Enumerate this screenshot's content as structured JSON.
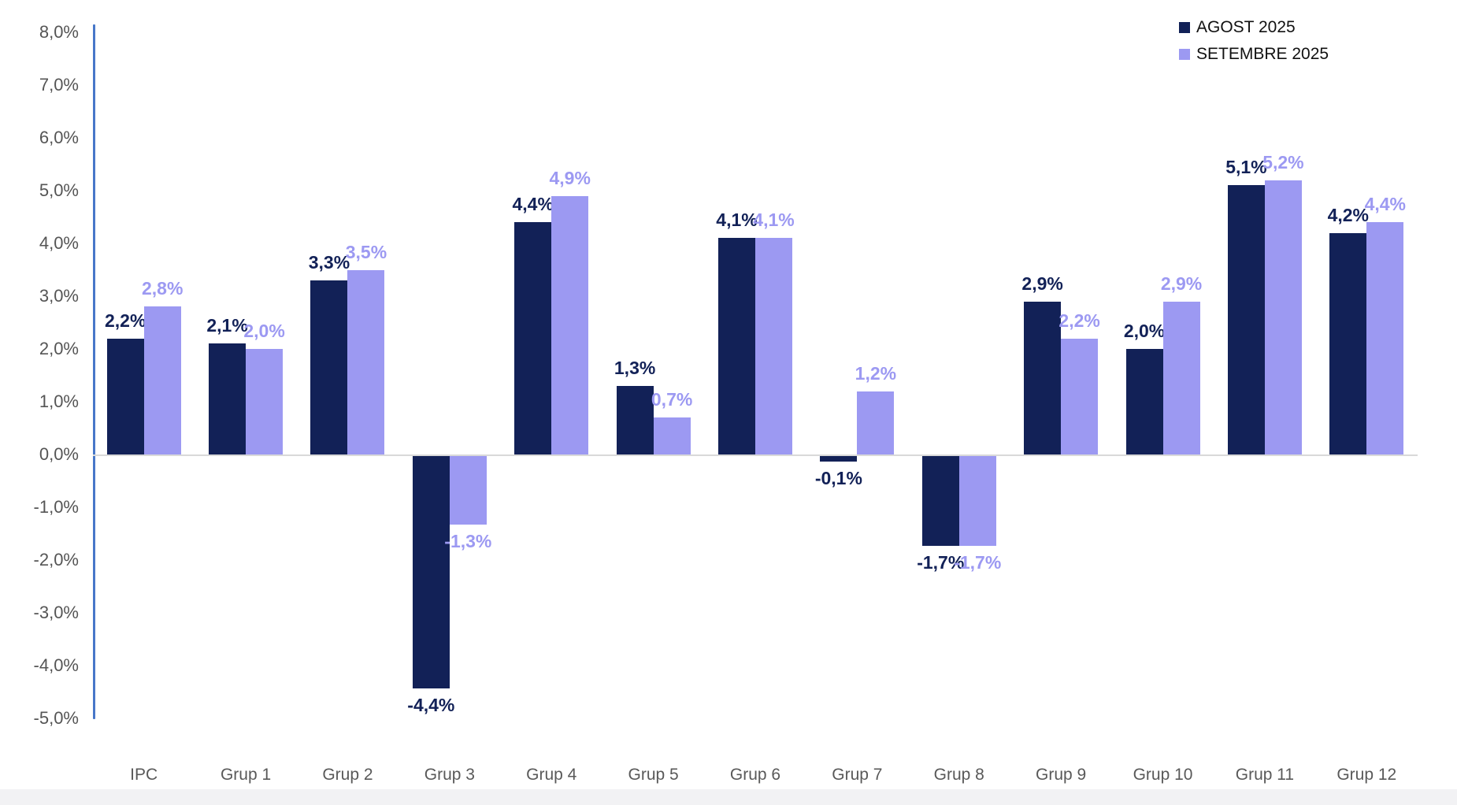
{
  "chart_data": {
    "type": "bar",
    "title": "",
    "xlabel": "",
    "ylabel": "",
    "categories": [
      "IPC",
      "Grup 1",
      "Grup 2",
      "Grup 3",
      "Grup 4",
      "Grup 5",
      "Grup 6",
      "Grup 7",
      "Grup 8",
      "Grup 9",
      "Grup 10",
      "Grup 11",
      "Grup 12"
    ],
    "series": [
      {
        "name": "AGOST 2025",
        "color": "#122157",
        "values": [
          2.2,
          2.1,
          3.3,
          -4.4,
          4.4,
          1.3,
          4.1,
          -0.1,
          -1.7,
          2.9,
          2.0,
          5.1,
          4.2
        ],
        "labels": [
          "2,2%",
          "2,1%",
          "3,3%",
          "-4,4%",
          "4,4%",
          "1,3%",
          "4,1%",
          "-0,1%",
          "-1,7%",
          "2,9%",
          "2,0%",
          "5,1%",
          "4,2%"
        ]
      },
      {
        "name": "SETEMBRE 2025",
        "color": "#9C99F2",
        "values": [
          2.8,
          2.0,
          3.5,
          -1.3,
          4.9,
          0.7,
          4.1,
          1.2,
          -1.7,
          2.2,
          2.9,
          5.2,
          4.4
        ],
        "labels": [
          "2,8%",
          "2,0%",
          "3,5%",
          "-1,3%",
          "4,9%",
          "0,7%",
          "4,1%",
          "1,2%",
          "-1,7%",
          "2,2%",
          "2,9%",
          "5,2%",
          "4,4%"
        ]
      }
    ],
    "ylim": [
      -5,
      8
    ],
    "ytick_step": 1,
    "yticks": [
      {
        "value": 8,
        "label": "8,0%"
      },
      {
        "value": 7,
        "label": "7,0%"
      },
      {
        "value": 6,
        "label": "6,0%"
      },
      {
        "value": 5,
        "label": "5,0%"
      },
      {
        "value": 4,
        "label": "4,0%"
      },
      {
        "value": 3,
        "label": "3,0%"
      },
      {
        "value": 2,
        "label": "2,0%"
      },
      {
        "value": 1,
        "label": "1,0%"
      },
      {
        "value": 0,
        "label": "0,0%"
      },
      {
        "value": -1,
        "label": "-1,0%"
      },
      {
        "value": -2,
        "label": "-2,0%"
      },
      {
        "value": -3,
        "label": "-3,0%"
      },
      {
        "value": -4,
        "label": "-4,0%"
      },
      {
        "value": -5,
        "label": "-5,0%"
      }
    ],
    "grid": false,
    "legend_position": "top-right",
    "axis_color": "#4777C9",
    "zero_line_color": "#D9D9D9",
    "ytick_color": "#555555",
    "xtick_color": "#595959"
  }
}
